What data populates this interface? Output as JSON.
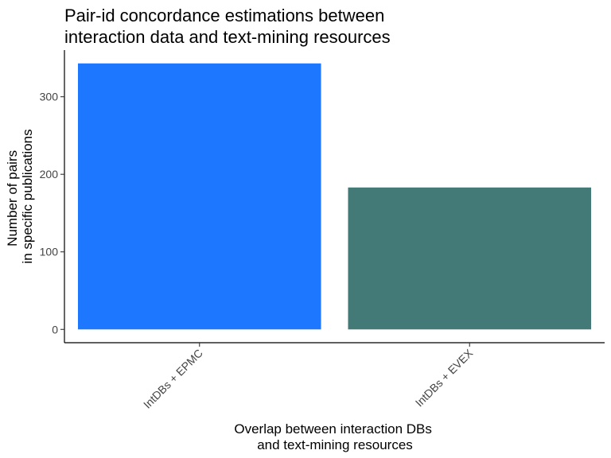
{
  "chart_data": {
    "type": "bar",
    "title_lines": [
      "Pair-id concordance estimations between",
      "interaction data and text-mining resources"
    ],
    "categories": [
      "IntDBs + EPMC",
      "IntDBs + EVEX"
    ],
    "values": [
      343,
      183
    ],
    "colors": [
      "#1e78ff",
      "#437976"
    ],
    "xlabel_lines": [
      "Overlap between interaction DBs",
      "and text-mining resources"
    ],
    "ylabel_lines": [
      "Number of pairs",
      "in specific publications"
    ],
    "ylim": [
      -17.15,
      360.15
    ],
    "yticks": [
      0,
      100,
      200,
      300
    ],
    "grid": false,
    "legend": "none"
  }
}
